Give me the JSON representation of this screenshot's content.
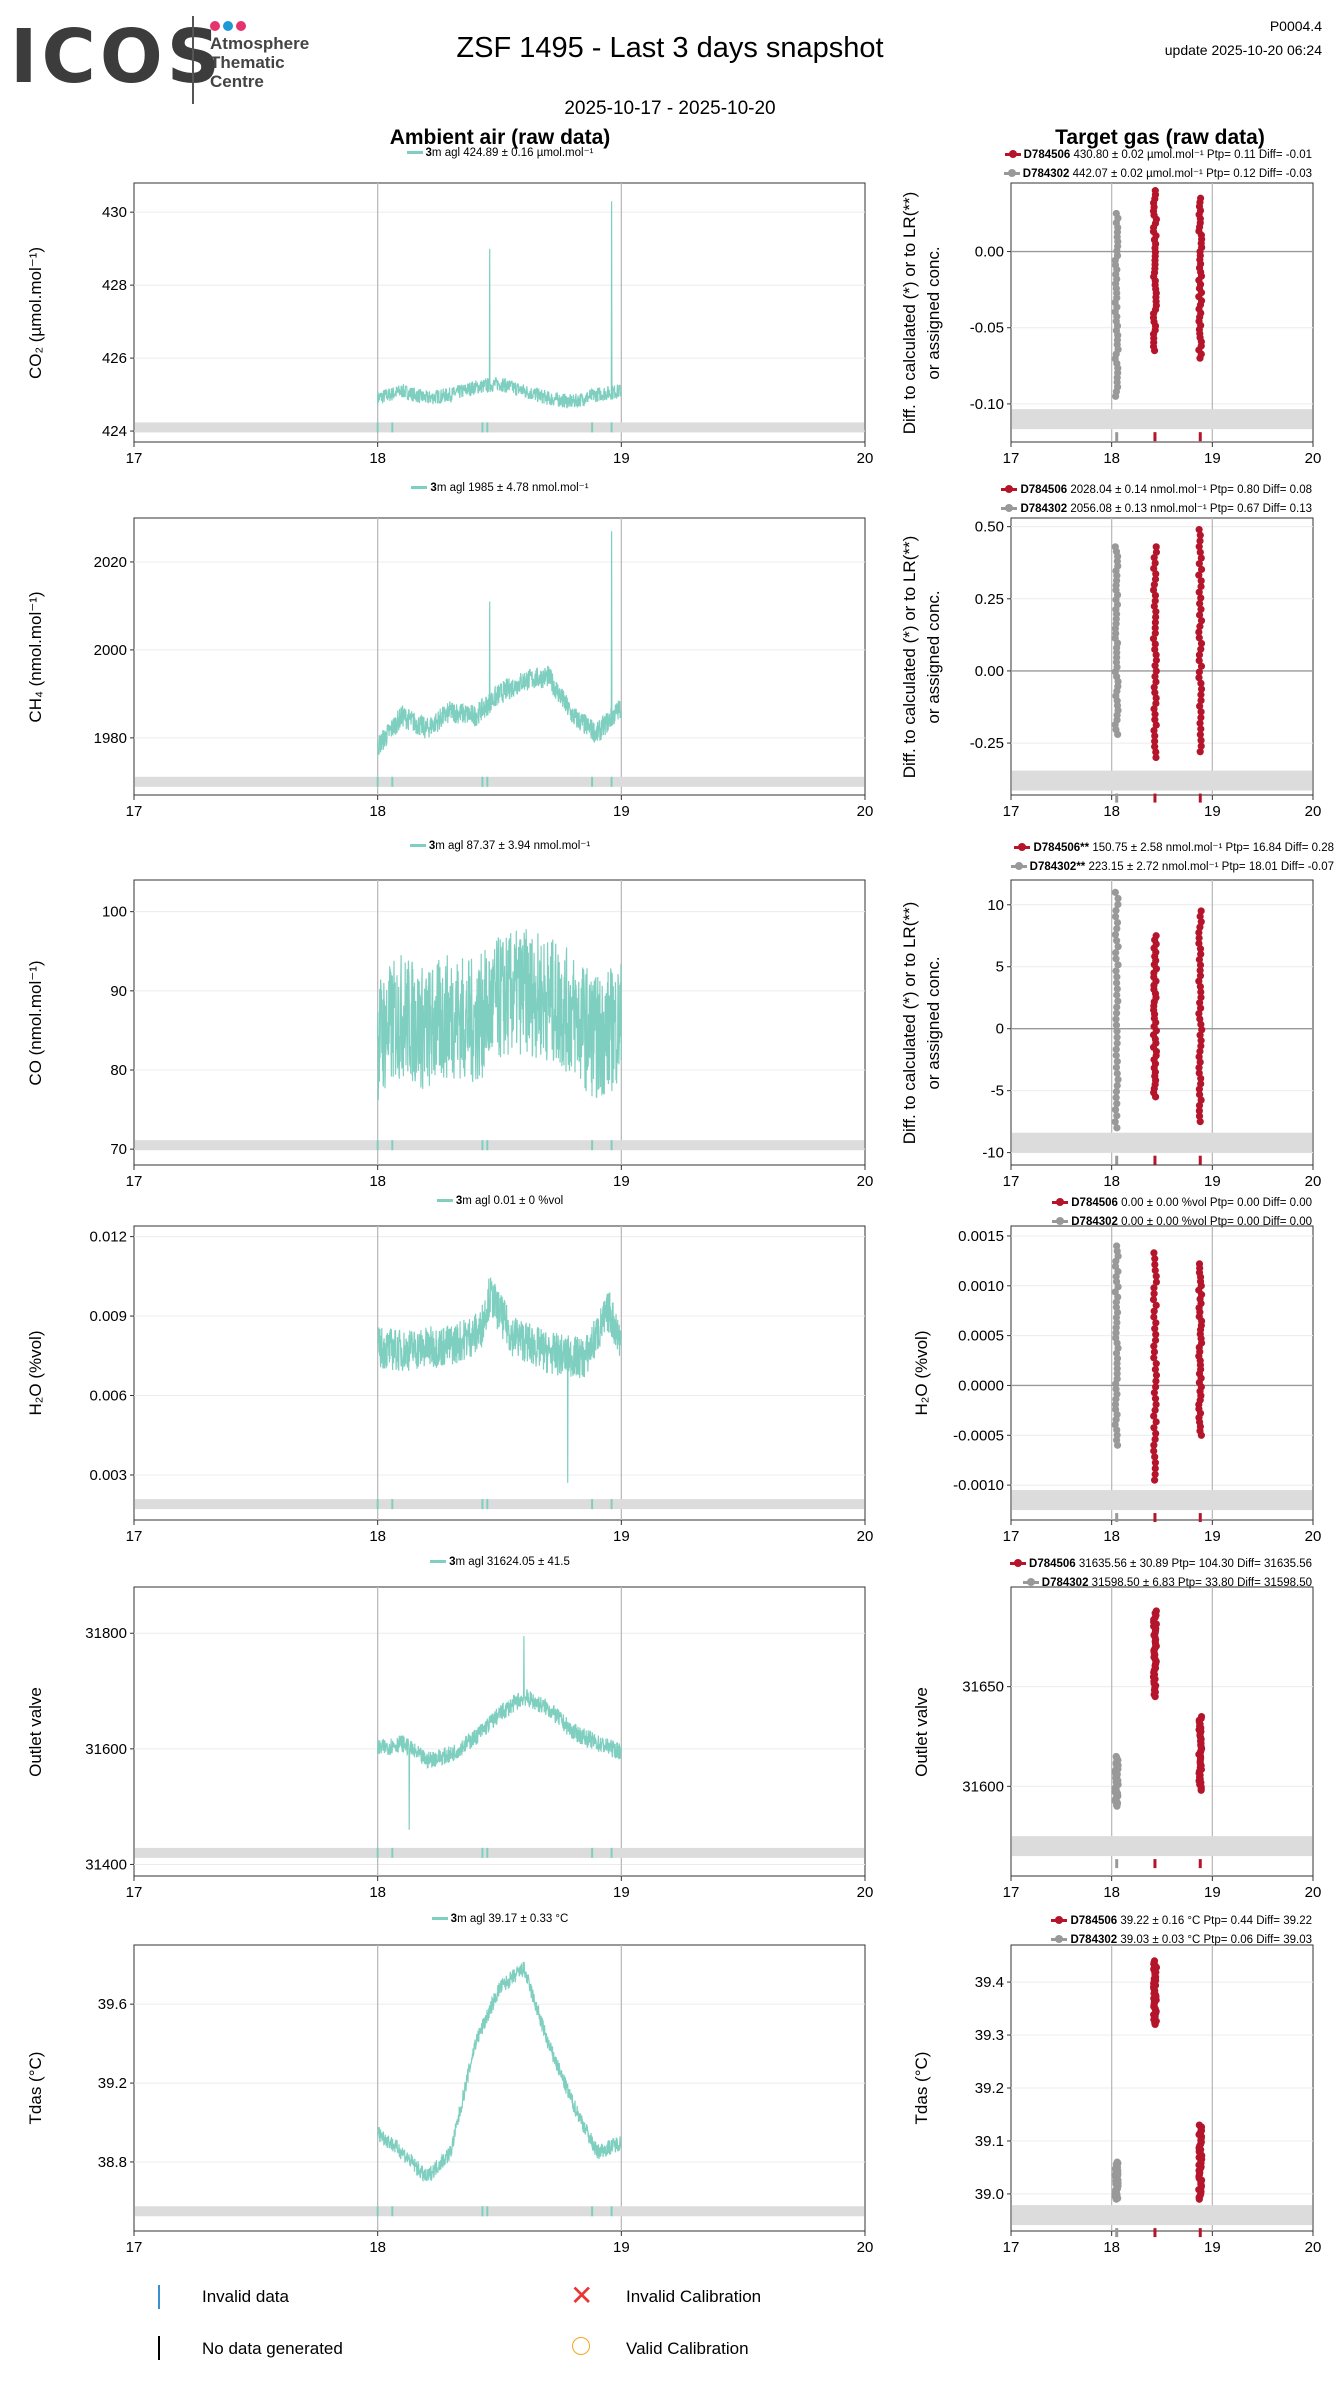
{
  "header": {
    "logo_text": "ICOS",
    "logo_sub": [
      "Atmosphere",
      "Thematic",
      "Centre"
    ],
    "title": "ZSF 1495 - Last 3 days snapshot",
    "date_range": "2025-10-17 - 2025-10-20",
    "version": "P0004.4",
    "update": "update  2025-10-20 06:24",
    "left_title": "Ambient air (raw data)",
    "right_title": "Target gas (raw data)"
  },
  "colors": {
    "ambient": "#7fcfc0",
    "cyl1": "#b5152b",
    "cyl2": "#999999",
    "band": "#dcdcdc",
    "grid": "#ececec",
    "vline": "#bbbbbb"
  },
  "panels": [
    {
      "ylabel": "CO₂ (µmol.mol⁻¹)",
      "right_ylabel": [
        "Diff. to calculated (*) or to LR(**)",
        "or assigned conc."
      ],
      "ambient_legend": {
        "height": "3",
        "text": "m agl 424.89 ± 0.16 µmol.mol⁻¹"
      },
      "target_legend": [
        {
          "name": "D784506",
          "text": " 430.80 ± 0.02 µmol.mol⁻¹ Ptp= 0.11 Diff= -0.01"
        },
        {
          "name": "D784302",
          "text": " 442.07 ± 0.02 µmol.mol⁻¹ Ptp= 0.12 Diff= -0.03"
        }
      ]
    },
    {
      "ylabel": "CH₄ (nmol.mol⁻¹)",
      "right_ylabel": [
        "Diff. to calculated (*) or to LR(**)",
        "or assigned conc."
      ],
      "ambient_legend": {
        "height": "3",
        "text": "m agl 1985 ± 4.78 nmol.mol⁻¹"
      },
      "target_legend": [
        {
          "name": "D784506",
          "text": " 2028.04 ± 0.14 nmol.mol⁻¹ Ptp= 0.80 Diff= 0.08"
        },
        {
          "name": "D784302",
          "text": " 2056.08 ± 0.13 nmol.mol⁻¹ Ptp= 0.67 Diff= 0.13"
        }
      ]
    },
    {
      "ylabel": "CO (nmol.mol⁻¹)",
      "right_ylabel": [
        "Diff. to calculated (*) or to LR(**)",
        "or assigned conc."
      ],
      "ambient_legend": {
        "height": "3",
        "text": "m agl 87.37 ± 3.94 nmol.mol⁻¹"
      },
      "target_legend": [
        {
          "name": "D784506**",
          "text": " 150.75 ± 2.58 nmol.mol⁻¹ Ptp= 16.84 Diff= 0.28"
        },
        {
          "name": "D784302**",
          "text": " 223.15 ± 2.72 nmol.mol⁻¹ Ptp= 18.01 Diff= -0.07"
        }
      ]
    },
    {
      "ylabel": "H₂O (%vol)",
      "right_ylabel": [
        "H₂O (%vol)"
      ],
      "ambient_legend": {
        "height": "3",
        "text": "m agl 0.01 ± 0 %vol"
      },
      "target_legend": [
        {
          "name": "D784506",
          "text": " 0.00 ± 0.00 %vol Ptp= 0.00 Diff= 0.00"
        },
        {
          "name": "D784302",
          "text": " 0.00 ± 0.00 %vol Ptp= 0.00 Diff= 0.00"
        }
      ]
    },
    {
      "ylabel": "Outlet valve",
      "right_ylabel": [
        "Outlet valve"
      ],
      "ambient_legend": {
        "height": "3",
        "text": "m agl 31624.05 ± 41.5"
      },
      "target_legend": [
        {
          "name": "D784506",
          "text": " 31635.56 ± 30.89  Ptp= 104.30 Diff= 31635.56"
        },
        {
          "name": "D784302",
          "text": " 31598.50 ± 6.83  Ptp= 33.80 Diff= 31598.50"
        }
      ]
    },
    {
      "ylabel": "Tdas (°C)",
      "right_ylabel": [
        "Tdas (°C)"
      ],
      "ambient_legend": {
        "height": "3",
        "text": "m agl 39.17 ± 0.33 °C"
      },
      "target_legend": [
        {
          "name": "D784506",
          "text": " 39.22 ± 0.16 °C Ptp= 0.44 Diff= 39.22"
        },
        {
          "name": "D784302",
          "text": " 39.03 ± 0.03 °C Ptp= 0.06 Diff= 39.03"
        }
      ]
    }
  ],
  "bottom_legend": {
    "invalid_data": "Invalid data",
    "no_data": "No data generated",
    "invalid_cal": "Invalid Calibration",
    "valid_cal": "Valid Calibration"
  },
  "chart_data": [
    {
      "type": "line",
      "name": "CO2",
      "xlim": [
        17,
        20
      ],
      "xticks": [
        17,
        18,
        19,
        20
      ],
      "ylim": [
        423.7,
        430.8
      ],
      "yticks": [
        424,
        426,
        428,
        430
      ],
      "ytick_labels": [
        "424",
        "426",
        "428",
        "430"
      ],
      "ambient": {
        "key": [
          [
            18.0,
            424.9
          ],
          [
            18.1,
            425.1
          ],
          [
            18.2,
            424.9
          ],
          [
            18.3,
            425.0
          ],
          [
            18.4,
            425.2
          ],
          [
            18.5,
            425.3
          ],
          [
            18.6,
            425.1
          ],
          [
            18.7,
            424.9
          ],
          [
            18.8,
            424.8
          ],
          [
            18.9,
            425.0
          ],
          [
            19.0,
            425.1
          ]
        ],
        "noise": 0.2,
        "spikes": [
          [
            18.46,
            429.0
          ],
          [
            18.96,
            430.3
          ]
        ],
        "band": 424.1,
        "flags": [
          18.0,
          18.06,
          18.43,
          18.45,
          18.88,
          18.96
        ]
      },
      "target": {
        "ylim": [
          -0.125,
          0.045
        ],
        "yticks": [
          0,
          -0.05,
          -0.1
        ],
        "ytick_labels": [
          "0.00",
          "-0.05",
          "-0.10"
        ],
        "zero": 0,
        "band": -0.11,
        "cylinders": [
          {
            "series": "D784302",
            "x": 18.05,
            "min": -0.095,
            "max": 0.025
          },
          {
            "series": "D784506",
            "x": 18.43,
            "min": -0.065,
            "max": 0.04
          },
          {
            "series": "D784506",
            "x": 18.88,
            "min": -0.07,
            "max": 0.035
          }
        ]
      }
    },
    {
      "type": "line",
      "name": "CH4",
      "xlim": [
        17,
        20
      ],
      "xticks": [
        17,
        18,
        19,
        20
      ],
      "ylim": [
        1967,
        2030
      ],
      "yticks": [
        1980,
        2000,
        2020
      ],
      "ytick_labels": [
        "1980",
        "2000",
        "2020"
      ],
      "ambient": {
        "key": [
          [
            18.0,
            1978
          ],
          [
            18.1,
            1985
          ],
          [
            18.2,
            1982
          ],
          [
            18.3,
            1986
          ],
          [
            18.4,
            1985
          ],
          [
            18.5,
            1990
          ],
          [
            18.6,
            1993
          ],
          [
            18.7,
            1994
          ],
          [
            18.8,
            1985
          ],
          [
            18.9,
            1981
          ],
          [
            19.0,
            1987
          ]
        ],
        "noise": 2.5,
        "spikes": [
          [
            18.46,
            2011
          ],
          [
            18.96,
            2027
          ]
        ],
        "band": 1970,
        "flags": [
          18.0,
          18.06,
          18.43,
          18.45,
          18.88,
          18.96
        ]
      },
      "target": {
        "ylim": [
          -0.43,
          0.53
        ],
        "yticks": [
          0.5,
          0.25,
          0,
          -0.25
        ],
        "ytick_labels": [
          "0.50",
          "0.25",
          "0.00",
          "-0.25"
        ],
        "zero": 0,
        "band": -0.38,
        "cylinders": [
          {
            "series": "D784302",
            "x": 18.05,
            "min": -0.22,
            "max": 0.43
          },
          {
            "series": "D784506",
            "x": 18.43,
            "min": -0.3,
            "max": 0.43
          },
          {
            "series": "D784506",
            "x": 18.88,
            "min": -0.28,
            "max": 0.49
          }
        ]
      }
    },
    {
      "type": "line",
      "name": "CO",
      "xlim": [
        17,
        20
      ],
      "xticks": [
        17,
        18,
        19,
        20
      ],
      "ylim": [
        68,
        104
      ],
      "yticks": [
        70,
        80,
        90,
        100
      ],
      "ytick_labels": [
        "70",
        "80",
        "90",
        "100"
      ],
      "ambient": {
        "key": [
          [
            18.0,
            84
          ],
          [
            18.1,
            87
          ],
          [
            18.2,
            85
          ],
          [
            18.3,
            87
          ],
          [
            18.4,
            86
          ],
          [
            18.5,
            89
          ],
          [
            18.6,
            90
          ],
          [
            18.7,
            89
          ],
          [
            18.8,
            87
          ],
          [
            18.9,
            84
          ],
          [
            19.0,
            86
          ]
        ],
        "noise": 8,
        "spikes": [],
        "band": 70.5,
        "flags": [
          18.0,
          18.06,
          18.43,
          18.45,
          18.88,
          18.96
        ]
      },
      "target": {
        "ylim": [
          -11,
          12
        ],
        "yticks": [
          10,
          5,
          0,
          -5,
          -10
        ],
        "ytick_labels": [
          "10",
          "5",
          "0",
          "-5",
          "-10"
        ],
        "zero": 0,
        "band": -9.2,
        "cylinders": [
          {
            "series": "D784302",
            "x": 18.05,
            "min": -8,
            "max": 11
          },
          {
            "series": "D784506",
            "x": 18.43,
            "min": -5.5,
            "max": 7.5
          },
          {
            "series": "D784506",
            "x": 18.88,
            "min": -7.5,
            "max": 9.5
          }
        ]
      }
    },
    {
      "type": "line",
      "name": "H2O",
      "xlim": [
        17,
        20
      ],
      "xticks": [
        17,
        18,
        19,
        20
      ],
      "ylim": [
        0.0013,
        0.0124
      ],
      "yticks": [
        0.003,
        0.006,
        0.009,
        0.012
      ],
      "ytick_labels": [
        "0.003",
        "0.006",
        "0.009",
        "0.012"
      ],
      "ambient": {
        "key": [
          [
            18.0,
            0.0078
          ],
          [
            18.1,
            0.0077
          ],
          [
            18.2,
            0.0078
          ],
          [
            18.3,
            0.0079
          ],
          [
            18.42,
            0.0084
          ],
          [
            18.46,
            0.0098
          ],
          [
            18.55,
            0.0083
          ],
          [
            18.7,
            0.0076
          ],
          [
            18.85,
            0.0074
          ],
          [
            18.95,
            0.0092
          ],
          [
            19.0,
            0.008
          ]
        ],
        "noise": 0.0008,
        "spikes": [
          [
            18.78,
            0.0027
          ]
        ],
        "band": 0.0019,
        "flags": [
          18.0,
          18.06,
          18.43,
          18.45,
          18.88,
          18.96
        ]
      },
      "target": {
        "ylim": [
          -0.00135,
          0.0016
        ],
        "yticks": [
          0.0015,
          0.001,
          0.0005,
          0,
          -0.0005,
          -0.001
        ],
        "ytick_labels": [
          "0.0015",
          "0.0010",
          "0.0005",
          "0.0000",
          "-0.0005",
          "-0.0010"
        ],
        "zero": 0,
        "band": -0.00115,
        "cylinders": [
          {
            "series": "D784302",
            "x": 18.05,
            "min": -0.0006,
            "max": 0.0014
          },
          {
            "series": "D784506",
            "x": 18.43,
            "min": -0.00095,
            "max": 0.00133
          },
          {
            "series": "D784506",
            "x": 18.88,
            "min": -0.0005,
            "max": 0.00122
          }
        ]
      }
    },
    {
      "type": "line",
      "name": "Outlet valve",
      "xlim": [
        17,
        20
      ],
      "xticks": [
        17,
        18,
        19,
        20
      ],
      "ylim": [
        31380,
        31880
      ],
      "yticks": [
        31400,
        31600,
        31800
      ],
      "ytick_labels": [
        "31400",
        "31600",
        "31800"
      ],
      "ambient": {
        "key": [
          [
            18.0,
            31600
          ],
          [
            18.1,
            31610
          ],
          [
            18.2,
            31580
          ],
          [
            18.3,
            31590
          ],
          [
            18.4,
            31620
          ],
          [
            18.5,
            31660
          ],
          [
            18.6,
            31690
          ],
          [
            18.7,
            31670
          ],
          [
            18.8,
            31630
          ],
          [
            18.9,
            31610
          ],
          [
            19.0,
            31595
          ]
        ],
        "noise": 15,
        "spikes": [
          [
            18.13,
            31460
          ],
          [
            18.6,
            31795
          ]
        ],
        "band": 31420,
        "flags": [
          18.0,
          18.06,
          18.43,
          18.45,
          18.88,
          18.96
        ]
      },
      "target": {
        "ylim": [
          31555,
          31700
        ],
        "yticks": [
          31600,
          31650
        ],
        "ytick_labels": [
          "31600",
          "31650"
        ],
        "zero": null,
        "band": 31570,
        "cylinders": [
          {
            "series": "D784302",
            "x": 18.05,
            "min": 31590,
            "max": 31615
          },
          {
            "series": "D784506",
            "x": 18.43,
            "min": 31645,
            "max": 31688
          },
          {
            "series": "D784506",
            "x": 18.88,
            "min": 31598,
            "max": 31635
          }
        ]
      }
    },
    {
      "type": "line",
      "name": "Tdas",
      "xlim": [
        17,
        20
      ],
      "xticks": [
        17,
        18,
        19,
        20
      ],
      "ylim": [
        38.45,
        39.9
      ],
      "yticks": [
        38.8,
        39.2,
        39.6
      ],
      "ytick_labels": [
        "38.8",
        "39.2",
        "39.6"
      ],
      "ambient": {
        "key": [
          [
            18.0,
            38.95
          ],
          [
            18.1,
            38.85
          ],
          [
            18.2,
            38.72
          ],
          [
            18.3,
            38.85
          ],
          [
            18.4,
            39.4
          ],
          [
            18.5,
            39.68
          ],
          [
            18.6,
            39.78
          ],
          [
            18.7,
            39.4
          ],
          [
            18.8,
            39.1
          ],
          [
            18.9,
            38.85
          ],
          [
            19.0,
            38.9
          ]
        ],
        "noise": 0.04,
        "spikes": [],
        "band": 38.55,
        "flags": [
          18.0,
          18.06,
          18.43,
          18.45,
          18.88,
          18.96
        ]
      },
      "target": {
        "ylim": [
          38.93,
          39.47
        ],
        "yticks": [
          39.0,
          39.1,
          39.2,
          39.3,
          39.4
        ],
        "ytick_labels": [
          "39.0",
          "39.1",
          "39.2",
          "39.3",
          "39.4"
        ],
        "zero": null,
        "band": 38.96,
        "cylinders": [
          {
            "series": "D784302",
            "x": 18.05,
            "min": 38.99,
            "max": 39.06
          },
          {
            "series": "D784506",
            "x": 18.43,
            "min": 39.32,
            "max": 39.44
          },
          {
            "series": "D784506",
            "x": 18.88,
            "min": 38.99,
            "max": 39.13
          }
        ]
      }
    }
  ]
}
